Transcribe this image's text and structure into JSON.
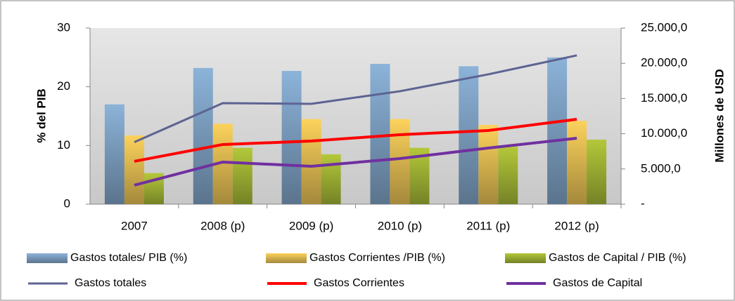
{
  "chart_data": {
    "type": "bar",
    "categories": [
      "2007",
      "2008 (p)",
      "2009 (p)",
      "2010 (p)",
      "2011 (p)",
      "2012 (p)"
    ],
    "y_label": "% del PIB",
    "y2_label": "Millones de USD",
    "ylim": [
      0,
      30
    ],
    "yticks": [
      0,
      10,
      20,
      30
    ],
    "y2lim": [
      0,
      25000
    ],
    "y2ticks": [
      {
        "value": 0,
        "label": "-"
      },
      {
        "value": 5000,
        "label": "5.000,0"
      },
      {
        "value": 10000,
        "label": "10.000,0"
      },
      {
        "value": 15000,
        "label": "15.000,0"
      },
      {
        "value": 20000,
        "label": "20.000,0"
      },
      {
        "value": 25000,
        "label": "25.000,0"
      }
    ],
    "series": [
      {
        "name": "Gastos totales/ PIB (%)",
        "type": "bar",
        "color": "#8cb3d9",
        "values": [
          17.0,
          23.2,
          22.7,
          23.9,
          23.5,
          25.0
        ]
      },
      {
        "name": "Gastos Corrientes /PIB (%)",
        "type": "bar",
        "color": "#fcd25c",
        "values": [
          11.7,
          13.7,
          14.5,
          14.5,
          13.5,
          14.2
        ]
      },
      {
        "name": "Gastos de Capital / PIB (%)",
        "type": "bar",
        "color": "#b4c83a",
        "values": [
          5.3,
          9.6,
          8.5,
          9.6,
          9.8,
          11.0
        ]
      },
      {
        "name": "Gastos totales",
        "type": "line",
        "axis": "y2",
        "color": "#5d6392",
        "values": [
          8800,
          14340,
          14240,
          16030,
          18430,
          21120
        ]
      },
      {
        "name": "Gastos Corrientes",
        "type": "line",
        "axis": "y2",
        "color": "#ff0000",
        "values": [
          6080,
          8470,
          8960,
          9860,
          10460,
          12050
        ]
      },
      {
        "name": "Gastos de Capital",
        "type": "line",
        "axis": "y2",
        "color": "#7030a0",
        "values": [
          2690,
          5980,
          5380,
          6470,
          7970,
          9360
        ]
      }
    ]
  }
}
